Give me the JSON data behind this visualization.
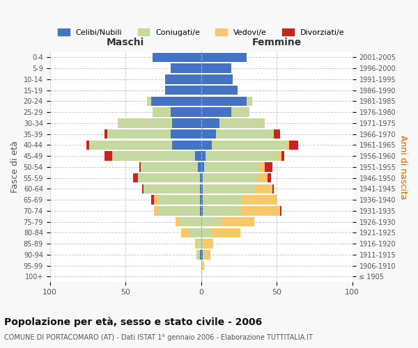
{
  "age_groups": [
    "100+",
    "95-99",
    "90-94",
    "85-89",
    "80-84",
    "75-79",
    "70-74",
    "65-69",
    "60-64",
    "55-59",
    "50-54",
    "45-49",
    "40-44",
    "35-39",
    "30-34",
    "25-29",
    "20-24",
    "15-19",
    "10-14",
    "5-9",
    "0-4"
  ],
  "birth_years": [
    "≤ 1905",
    "1906-1910",
    "1911-1915",
    "1916-1920",
    "1921-1925",
    "1926-1930",
    "1931-1935",
    "1936-1940",
    "1941-1945",
    "1946-1950",
    "1951-1955",
    "1956-1960",
    "1961-1965",
    "1966-1970",
    "1971-1975",
    "1976-1980",
    "1981-1985",
    "1986-1990",
    "1991-1995",
    "1996-2000",
    "2001-2005"
  ],
  "males": {
    "celibi": [
      0,
      0,
      1,
      0,
      0,
      0,
      1,
      1,
      1,
      1,
      2,
      4,
      19,
      20,
      19,
      20,
      33,
      24,
      24,
      20,
      32
    ],
    "coniugati": [
      0,
      0,
      2,
      3,
      8,
      14,
      27,
      27,
      37,
      41,
      38,
      55,
      55,
      42,
      36,
      12,
      3,
      0,
      0,
      0,
      0
    ],
    "vedovi": [
      0,
      0,
      0,
      1,
      5,
      3,
      3,
      3,
      0,
      0,
      0,
      0,
      0,
      0,
      0,
      0,
      0,
      0,
      0,
      0,
      0
    ],
    "divorziati": [
      0,
      0,
      0,
      0,
      0,
      0,
      0,
      2,
      1,
      3,
      1,
      5,
      2,
      2,
      0,
      0,
      0,
      0,
      0,
      0,
      0
    ]
  },
  "females": {
    "nubili": [
      0,
      0,
      1,
      0,
      0,
      0,
      1,
      1,
      1,
      1,
      2,
      3,
      7,
      10,
      12,
      20,
      30,
      24,
      21,
      20,
      30
    ],
    "coniugate": [
      0,
      0,
      1,
      1,
      7,
      13,
      25,
      26,
      34,
      36,
      36,
      48,
      50,
      38,
      30,
      12,
      4,
      0,
      0,
      0,
      0
    ],
    "vedove": [
      0,
      2,
      4,
      7,
      19,
      22,
      26,
      23,
      12,
      7,
      4,
      2,
      1,
      0,
      0,
      0,
      0,
      0,
      0,
      0,
      0
    ],
    "divorziate": [
      0,
      0,
      0,
      0,
      0,
      0,
      1,
      0,
      1,
      2,
      5,
      2,
      6,
      4,
      0,
      0,
      0,
      0,
      0,
      0,
      0
    ]
  },
  "colors": {
    "celibi_nubili": "#4472c4",
    "coniugati": "#c5d8a0",
    "vedovi": "#f5c96a",
    "divorziati": "#cc2222"
  },
  "xlim": 100,
  "title": "Popolazione per età, sesso e stato civile - 2006",
  "subtitle": "COMUNE DI PORTACOMARO (AT) - Dati ISTAT 1° gennaio 2006 - Elaborazione TUTTITALIA.IT",
  "ylabel_left": "Fasce di età",
  "ylabel_right": "Anni di nascita",
  "xlabel_left": "Maschi",
  "xlabel_right": "Femmine",
  "bg_color": "#f8f8f8",
  "plot_bg_color": "#ffffff"
}
